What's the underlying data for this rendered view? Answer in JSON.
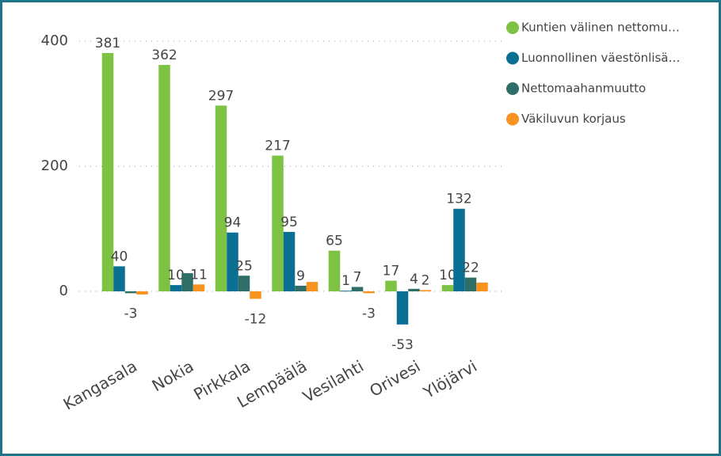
{
  "chart_data": {
    "type": "bar",
    "categories": [
      "Kangasala",
      "Nokia",
      "Pirkkala",
      "Lempäälä",
      "Vesilahti",
      "Orivesi",
      "Ylöjärvi"
    ],
    "series": [
      {
        "name": "Kuntien välinen nettomu…",
        "color": "#7dc242",
        "values": [
          381,
          362,
          297,
          217,
          65,
          17,
          10
        ],
        "value_labels": [
          "381",
          "362",
          "297",
          "217",
          "65",
          "17",
          "10"
        ]
      },
      {
        "name": "Luonnollinen väestönlisä…",
        "color": "#0b6f94",
        "values": [
          40,
          10,
          94,
          95,
          1,
          -53,
          132
        ],
        "value_labels": [
          "40",
          "10",
          "94",
          "95",
          "1",
          "-53",
          "132"
        ]
      },
      {
        "name": "Nettomaahanmuutto",
        "color": "#2e6e66",
        "values": [
          -3,
          29,
          25,
          9,
          7,
          4,
          22
        ],
        "value_labels": [
          "-3",
          null,
          "25",
          "9",
          "7",
          "4",
          "22"
        ]
      },
      {
        "name": "Väkiluvun korjaus",
        "color": "#f7931e",
        "values": [
          -5,
          11,
          -12,
          15,
          -3,
          2,
          14
        ],
        "value_labels": [
          null,
          "11",
          "-12",
          null,
          "-3",
          "2",
          null
        ]
      }
    ],
    "ylim": [
      -60,
      420
    ],
    "yticks": [
      0,
      200,
      400
    ],
    "grid": true,
    "legend": "top-right"
  }
}
